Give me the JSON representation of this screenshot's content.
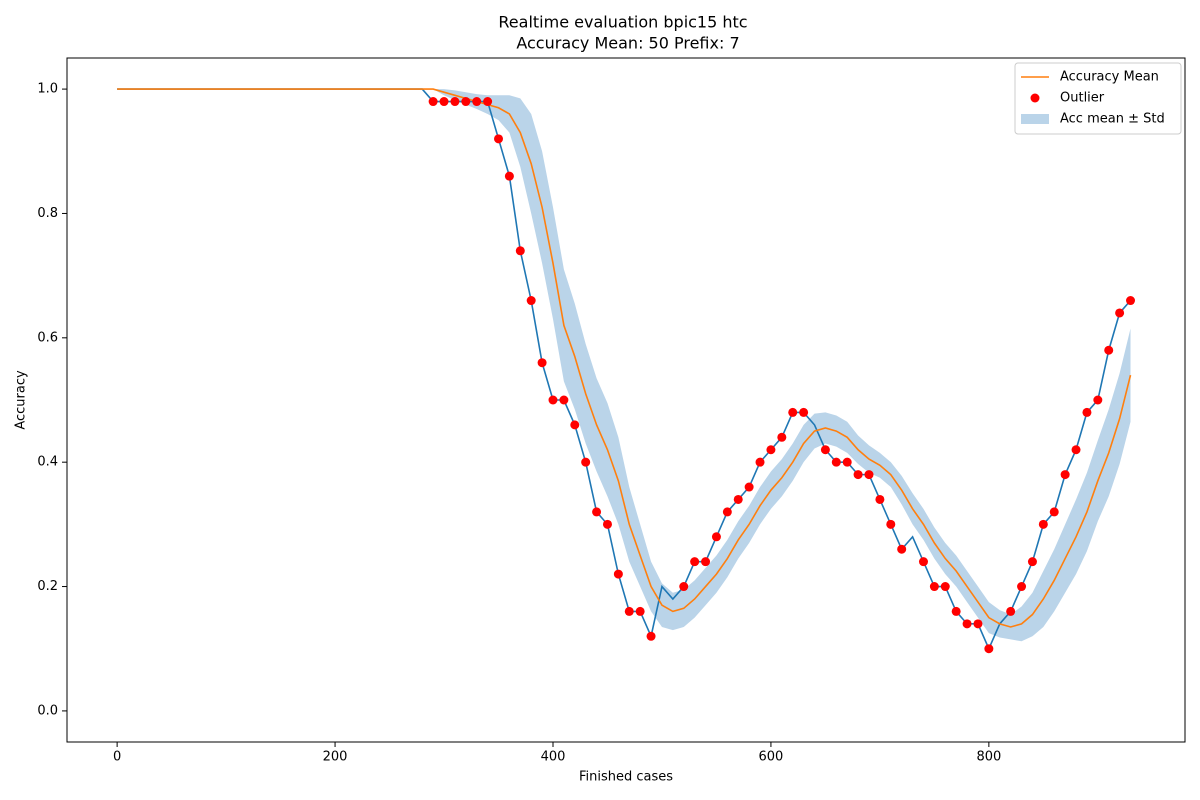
{
  "chart_data": {
    "type": "line",
    "title": "Realtime evaluation bpic15 htc",
    "subtitle": "Accuracy Mean: 50 Prefix: 7",
    "x_label": "Finished cases",
    "y_label": "Accuracy",
    "xlim": [
      -46,
      980
    ],
    "ylim": [
      -0.05,
      1.05
    ],
    "xticks": [
      0,
      200,
      400,
      600,
      800
    ],
    "yticks": [
      {
        "value": 0,
        "label": "0.0"
      },
      0.2,
      0.4,
      0.6,
      0.8,
      {
        "value": 1,
        "label": "1.0"
      }
    ],
    "legend": "upper right",
    "x": [
      0,
      10,
      20,
      30,
      40,
      50,
      60,
      70,
      80,
      90,
      100,
      110,
      120,
      130,
      140,
      150,
      160,
      170,
      180,
      190,
      200,
      210,
      220,
      230,
      240,
      250,
      260,
      270,
      280,
      290,
      300,
      310,
      320,
      330,
      340,
      350,
      360,
      370,
      380,
      390,
      400,
      410,
      420,
      430,
      440,
      450,
      460,
      470,
      480,
      490,
      500,
      510,
      520,
      530,
      540,
      550,
      560,
      570,
      580,
      590,
      600,
      610,
      620,
      630,
      640,
      650,
      660,
      670,
      680,
      690,
      700,
      710,
      720,
      730,
      740,
      750,
      760,
      770,
      780,
      790,
      800,
      810,
      820,
      830,
      840,
      850,
      860,
      870,
      880,
      890,
      900,
      910,
      920,
      930
    ],
    "series": [
      {
        "style": "line",
        "color": "#1f77b4",
        "values": [
          1,
          1,
          1,
          1,
          1,
          1,
          1,
          1,
          1,
          1,
          1,
          1,
          1,
          1,
          1,
          1,
          1,
          1,
          1,
          1,
          1,
          1,
          1,
          1,
          1,
          1,
          1,
          1,
          1,
          0.98,
          0.98,
          0.98,
          0.98,
          0.98,
          0.98,
          0.92,
          0.86,
          0.74,
          0.66,
          0.56,
          0.5,
          0.5,
          0.46,
          0.4,
          0.32,
          0.3,
          0.22,
          0.16,
          0.16,
          0.12,
          0.2,
          0.18,
          0.2,
          0.24,
          0.24,
          0.28,
          0.32,
          0.34,
          0.36,
          0.4,
          0.42,
          0.44,
          0.48,
          0.48,
          0.46,
          0.42,
          0.4,
          0.4,
          0.38,
          0.38,
          0.34,
          0.3,
          0.26,
          0.28,
          0.24,
          0.2,
          0.2,
          0.16,
          0.14,
          0.14,
          0.1,
          0.14,
          0.16,
          0.2,
          0.24,
          0.3,
          0.32,
          0.38,
          0.42,
          0.48,
          0.5,
          0.58,
          0.64,
          0.66
        ]
      },
      {
        "name": "Accuracy Mean",
        "style": "line",
        "color": "#ff7f0e",
        "values": [
          1,
          1,
          1,
          1,
          1,
          1,
          1,
          1,
          1,
          1,
          1,
          1,
          1,
          1,
          1,
          1,
          1,
          1,
          1,
          1,
          1,
          1,
          1,
          1,
          1,
          1,
          1,
          1,
          1,
          1,
          0.995,
          0.99,
          0.985,
          0.98,
          0.975,
          0.97,
          0.96,
          0.93,
          0.88,
          0.81,
          0.72,
          0.62,
          0.57,
          0.51,
          0.46,
          0.42,
          0.37,
          0.3,
          0.25,
          0.2,
          0.17,
          0.16,
          0.165,
          0.18,
          0.2,
          0.22,
          0.245,
          0.275,
          0.3,
          0.33,
          0.355,
          0.375,
          0.4,
          0.43,
          0.45,
          0.455,
          0.45,
          0.44,
          0.42,
          0.405,
          0.395,
          0.38,
          0.355,
          0.325,
          0.3,
          0.27,
          0.245,
          0.225,
          0.2,
          0.175,
          0.15,
          0.14,
          0.135,
          0.14,
          0.155,
          0.18,
          0.21,
          0.245,
          0.28,
          0.32,
          0.37,
          0.415,
          0.47,
          0.54
        ]
      },
      {
        "name": "Outlier",
        "style": "markers",
        "color": "#ff0000",
        "x": [
          290,
          300,
          310,
          320,
          330,
          340,
          350,
          360,
          370,
          380,
          390,
          400,
          410,
          420,
          430,
          440,
          450,
          460,
          470,
          480,
          490,
          520,
          530,
          540,
          550,
          560,
          570,
          580,
          590,
          600,
          610,
          620,
          630,
          650,
          660,
          670,
          680,
          690,
          700,
          710,
          720,
          740,
          750,
          760,
          770,
          780,
          790,
          800,
          820,
          830,
          840,
          850,
          860,
          870,
          880,
          890,
          900,
          910,
          920,
          930
        ],
        "values": [
          0.98,
          0.98,
          0.98,
          0.98,
          0.98,
          0.98,
          0.92,
          0.86,
          0.74,
          0.66,
          0.56,
          0.5,
          0.5,
          0.46,
          0.4,
          0.32,
          0.3,
          0.22,
          0.16,
          0.16,
          0.12,
          0.2,
          0.24,
          0.24,
          0.28,
          0.32,
          0.34,
          0.36,
          0.4,
          0.42,
          0.44,
          0.48,
          0.48,
          0.42,
          0.4,
          0.4,
          0.38,
          0.38,
          0.34,
          0.3,
          0.26,
          0.24,
          0.2,
          0.2,
          0.16,
          0.14,
          0.14,
          0.1,
          0.16,
          0.2,
          0.24,
          0.3,
          0.32,
          0.38,
          0.42,
          0.48,
          0.5,
          0.58,
          0.64,
          0.66
        ]
      },
      {
        "name": "Acc mean ± Std",
        "style": "band",
        "color": "#bad4e9",
        "upper": [
          null,
          null,
          null,
          null,
          null,
          null,
          null,
          null,
          null,
          null,
          null,
          null,
          null,
          null,
          null,
          null,
          null,
          null,
          null,
          null,
          null,
          null,
          null,
          null,
          null,
          null,
          null,
          null,
          null,
          1,
          1,
          0.998,
          0.995,
          0.992,
          0.99,
          0.99,
          0.99,
          0.985,
          0.96,
          0.9,
          0.81,
          0.71,
          0.655,
          0.59,
          0.535,
          0.495,
          0.44,
          0.36,
          0.3,
          0.24,
          0.205,
          0.19,
          0.195,
          0.21,
          0.23,
          0.25,
          0.275,
          0.305,
          0.33,
          0.36,
          0.385,
          0.405,
          0.43,
          0.46,
          0.478,
          0.48,
          0.475,
          0.465,
          0.443,
          0.427,
          0.415,
          0.4,
          0.378,
          0.35,
          0.325,
          0.295,
          0.27,
          0.25,
          0.225,
          0.2,
          0.175,
          0.162,
          0.155,
          0.168,
          0.19,
          0.225,
          0.26,
          0.3,
          0.34,
          0.383,
          0.435,
          0.485,
          0.543,
          0.615
        ],
        "lower": [
          null,
          null,
          null,
          null,
          null,
          null,
          null,
          null,
          null,
          null,
          null,
          null,
          null,
          null,
          null,
          null,
          null,
          null,
          null,
          null,
          null,
          null,
          null,
          null,
          null,
          null,
          null,
          null,
          null,
          1,
          0.99,
          0.982,
          0.975,
          0.968,
          0.96,
          0.95,
          0.93,
          0.875,
          0.8,
          0.72,
          0.63,
          0.53,
          0.485,
          0.43,
          0.385,
          0.345,
          0.3,
          0.24,
          0.2,
          0.16,
          0.135,
          0.13,
          0.135,
          0.15,
          0.17,
          0.19,
          0.215,
          0.245,
          0.27,
          0.3,
          0.325,
          0.345,
          0.37,
          0.4,
          0.422,
          0.43,
          0.425,
          0.415,
          0.397,
          0.383,
          0.375,
          0.36,
          0.332,
          0.3,
          0.275,
          0.245,
          0.22,
          0.2,
          0.175,
          0.15,
          0.125,
          0.118,
          0.115,
          0.112,
          0.12,
          0.135,
          0.16,
          0.19,
          0.22,
          0.257,
          0.305,
          0.345,
          0.397,
          0.465
        ]
      }
    ]
  }
}
